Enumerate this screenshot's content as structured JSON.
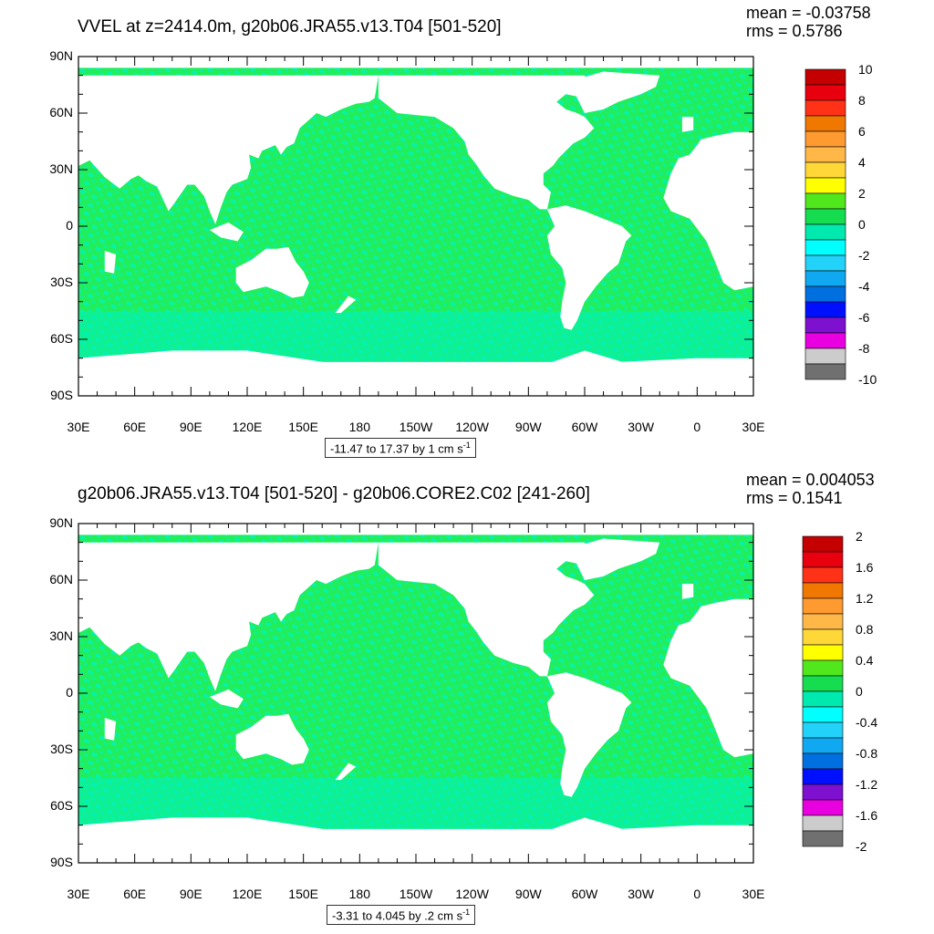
{
  "panels": [
    {
      "title": "VVEL at z=2414.0m, g20b06.JRA55.v13.T04 [501-520]",
      "mean": "mean = -0.03758",
      "rms": "rms = 0.5786",
      "range_text": "-11.47 to 17.37 by 1 cm s",
      "range_unit_exp": "-1",
      "colorbar_labels": [
        "10",
        "8",
        "6",
        "4",
        "2",
        "0",
        "-2",
        "-4",
        "-6",
        "-8",
        "-10"
      ]
    },
    {
      "title": "g20b06.JRA55.v13.T04 [501-520] - g20b06.CORE2.C02 [241-260]",
      "mean": "mean = 0.004053",
      "rms": "rms = 0.1541",
      "range_text": "-3.31 to 4.045 by .2 cm s",
      "range_unit_exp": "-1",
      "colorbar_labels": [
        "2",
        "1.6",
        "1.2",
        "0.8",
        "0.4",
        "0",
        "-0.4",
        "-0.8",
        "-1.2",
        "-1.6",
        "-2"
      ]
    }
  ],
  "lat_labels": [
    "90N",
    "60N",
    "30N",
    "0",
    "30S",
    "60S",
    "90S"
  ],
  "lon_labels": [
    "30E",
    "60E",
    "90E",
    "120E",
    "150E",
    "180",
    "150W",
    "120W",
    "90W",
    "60W",
    "30W",
    "0",
    "30E"
  ],
  "colors": {
    "ocean_primary": "#21ee5a",
    "ocean_secondary": "#00f2c0",
    "colorbar": [
      "#c40000",
      "#e8000f",
      "#ff3218",
      "#f07800",
      "#ff9a30",
      "#ffb848",
      "#ffd838",
      "#ffff00",
      "#50e81c",
      "#16dc50",
      "#00eab0",
      "#00ffff",
      "#22d2f8",
      "#10a8f0",
      "#0070e0",
      "#0010ff",
      "#7e10d0",
      "#e800e0",
      "#cccccc",
      "#707070"
    ]
  },
  "chart_data": [
    {
      "type": "heatmap",
      "title": "VVEL at z=2414.0m, g20b06.JRA55.v13.T04 [501-520]",
      "x_ticks": [
        "30E",
        "60E",
        "90E",
        "120E",
        "150E",
        "180",
        "150W",
        "120W",
        "90W",
        "60W",
        "30W",
        "0",
        "30E"
      ],
      "y_ticks": [
        "90N",
        "60N",
        "30N",
        "0",
        "30S",
        "60S",
        "90S"
      ],
      "xlim": [
        30,
        390
      ],
      "ylim": [
        -90,
        90
      ],
      "color_levels": [
        10,
        8,
        6,
        4,
        2,
        0,
        -2,
        -4,
        -6,
        -8,
        -10
      ],
      "mean": -0.03758,
      "rms": 0.5786,
      "min": -11.47,
      "max": 17.37,
      "interval": 1,
      "units": "cm s-1"
    },
    {
      "type": "heatmap",
      "title": "g20b06.JRA55.v13.T04 [501-520] - g20b06.CORE2.C02 [241-260]",
      "x_ticks": [
        "30E",
        "60E",
        "90E",
        "120E",
        "150E",
        "180",
        "150W",
        "120W",
        "90W",
        "60W",
        "30W",
        "0",
        "30E"
      ],
      "y_ticks": [
        "90N",
        "60N",
        "30N",
        "0",
        "30S",
        "60S",
        "90S"
      ],
      "xlim": [
        30,
        390
      ],
      "ylim": [
        -90,
        90
      ],
      "color_levels": [
        2,
        1.6,
        1.2,
        0.8,
        0.4,
        0,
        -0.4,
        -0.8,
        -1.2,
        -1.6,
        -2
      ],
      "mean": 0.004053,
      "rms": 0.1541,
      "min": -3.31,
      "max": 4.045,
      "interval": 0.2,
      "units": "cm s-1"
    }
  ]
}
